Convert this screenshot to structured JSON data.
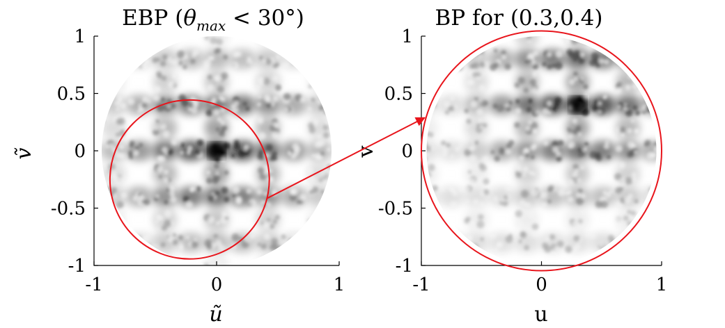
{
  "chart_data": [
    {
      "type": "heatmap",
      "title_parts": [
        "EBP (",
        "θ",
        "max",
        " < 30°)"
      ],
      "xlabel": "ũ",
      "ylabel": "ṽ",
      "xlim": [
        -1,
        1
      ],
      "ylim": [
        -1,
        1
      ],
      "xticks": [
        -1,
        0,
        1
      ],
      "xtick_labels": [
        "-1",
        "0",
        "1"
      ],
      "yticks": [
        1,
        0.5,
        0,
        -0.5,
        -1
      ],
      "ytick_labels": [
        "1",
        "0.5",
        "0",
        "-0.5",
        "-1"
      ],
      "colormap": "gray-inverted",
      "visible_region": {
        "shape": "circle",
        "center": [
          0,
          0
        ],
        "radius": 1
      },
      "peak": [
        0,
        0
      ],
      "overlay_circle": {
        "center": [
          -0.22,
          -0.25
        ],
        "radius": 0.65,
        "color": "#e8141b"
      }
    },
    {
      "type": "heatmap",
      "title": "BP for (0.3,0.4)",
      "xlabel": "u",
      "ylabel": "v",
      "xlim": [
        -1,
        1
      ],
      "ylim": [
        -1,
        1
      ],
      "xticks": [
        -1,
        0,
        1
      ],
      "xtick_labels": [
        "-1",
        "0",
        "1"
      ],
      "yticks": [
        1,
        0.5,
        0,
        -0.5,
        -1
      ],
      "ytick_labels": [
        "1",
        "0.5",
        "0",
        "-0.5",
        "-1"
      ],
      "colormap": "gray-inverted",
      "visible_region": {
        "shape": "circle",
        "center": [
          0,
          0
        ],
        "radius": 1
      },
      "peak": [
        0.3,
        0.4
      ],
      "overlay_circle": {
        "center": [
          0,
          0
        ],
        "radius": 1,
        "color": "#e8141b"
      }
    }
  ],
  "annotation": {
    "type": "arrow",
    "from_panel": 0,
    "to_panel": 1,
    "color": "#e8141b"
  }
}
